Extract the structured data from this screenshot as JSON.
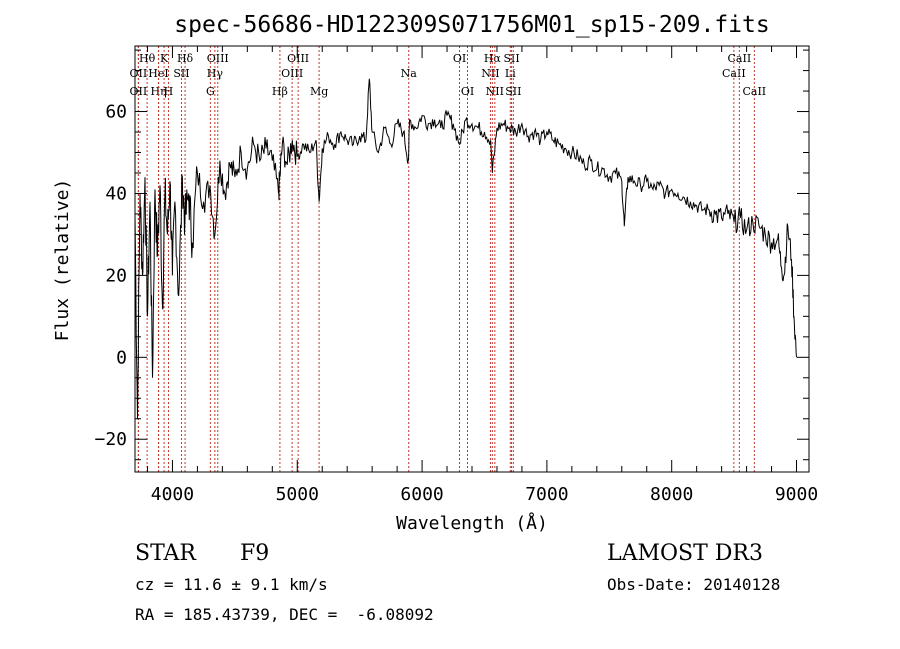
{
  "chart_data": {
    "type": "line",
    "title": "spec-56686-HD122309S071756M01_sp15-209.fits",
    "xlabel": "Wavelength (Å)",
    "ylabel": "Flux (relative)",
    "xlim": [
      3700,
      9100
    ],
    "ylim": [
      -28,
      76
    ],
    "x_ticks": [
      4000,
      5000,
      6000,
      7000,
      8000,
      9000
    ],
    "x_tick_labels": [
      "4000",
      "5000",
      "6000",
      "7000",
      "8000",
      "9000"
    ],
    "y_ticks": [
      -20,
      0,
      20,
      40,
      60
    ],
    "y_tick_labels": [
      "−20",
      "0",
      "20",
      "40",
      "60"
    ],
    "series": [
      {
        "name": "spectrum",
        "x": [
          3700,
          3720,
          3740,
          3760,
          3780,
          3800,
          3820,
          3840,
          3860,
          3880,
          3900,
          3920,
          3940,
          3960,
          3980,
          4000,
          4020,
          4050,
          4080,
          4100,
          4130,
          4160,
          4200,
          4250,
          4300,
          4340,
          4380,
          4420,
          4460,
          4500,
          4550,
          4600,
          4650,
          4700,
          4750,
          4800,
          4850,
          4861,
          4880,
          4920,
          4960,
          5000,
          5050,
          5100,
          5150,
          5175,
          5200,
          5250,
          5300,
          5350,
          5400,
          5450,
          5500,
          5550,
          5577,
          5600,
          5650,
          5700,
          5750,
          5800,
          5850,
          5890,
          5900,
          5950,
          6000,
          6050,
          6100,
          6150,
          6200,
          6250,
          6300,
          6350,
          6400,
          6450,
          6500,
          6550,
          6563,
          6600,
          6650,
          6700,
          6750,
          6800,
          6850,
          6900,
          6950,
          7000,
          7050,
          7100,
          7150,
          7200,
          7250,
          7300,
          7350,
          7400,
          7450,
          7500,
          7550,
          7600,
          7620,
          7650,
          7700,
          7750,
          7800,
          7850,
          7900,
          7950,
          8000,
          8050,
          8100,
          8150,
          8200,
          8250,
          8300,
          8350,
          8400,
          8450,
          8500,
          8550,
          8600,
          8650,
          8700,
          8750,
          8800,
          8850,
          8880,
          8900,
          8930,
          8960,
          8980,
          9000
        ],
        "y": [
          35,
          -15,
          40,
          20,
          44,
          10,
          38,
          -5,
          41,
          25,
          42,
          12,
          40,
          30,
          43,
          20,
          38,
          15,
          44,
          33,
          40,
          28,
          45,
          38,
          42,
          30,
          48,
          40,
          47,
          44,
          50,
          46,
          52,
          48,
          51,
          48,
          40,
          44,
          52,
          47,
          53,
          49,
          52,
          50,
          53,
          38,
          51,
          54,
          52,
          55,
          53,
          52,
          54,
          53,
          68,
          55,
          50,
          56,
          52,
          57,
          55,
          48,
          58,
          56,
          59,
          57,
          58,
          56,
          59,
          57,
          52,
          58,
          57,
          56,
          55,
          53,
          45,
          56,
          57,
          56,
          55,
          57,
          54,
          55,
          53,
          55,
          53,
          52,
          51,
          50,
          49,
          47,
          48,
          46,
          46,
          44,
          45,
          43,
          32,
          44,
          43,
          42,
          43,
          41,
          42,
          40,
          41,
          40,
          39,
          38,
          37,
          36,
          36,
          35,
          34,
          35,
          33,
          34,
          31,
          33,
          32,
          30,
          28,
          29,
          22,
          20,
          32,
          24,
          10,
          0
        ]
      }
    ],
    "line_markers": [
      {
        "x": 3797,
        "label": "Hθ",
        "row": 1
      },
      {
        "x": 3727,
        "label": "OII",
        "row": 2
      },
      {
        "x": 3727,
        "label": "OII",
        "row": 3
      },
      {
        "x": 3889,
        "label": "Hη",
        "row": 3
      },
      {
        "x": 3933,
        "label": "K",
        "row": 1
      },
      {
        "x": 3888,
        "label": "HeI",
        "row": 2
      },
      {
        "x": 3968,
        "label": "H",
        "row": 3
      },
      {
        "x": 4072,
        "label": "SII",
        "row": 2
      },
      {
        "x": 4101,
        "label": "Hδ",
        "row": 1
      },
      {
        "x": 4340,
        "label": "Hγ",
        "row": 2
      },
      {
        "x": 4304,
        "label": "G",
        "row": 3
      },
      {
        "x": 4363,
        "label": "OIII",
        "row": 1
      },
      {
        "x": 4861,
        "label": "Hβ",
        "row": 3
      },
      {
        "x": 4959,
        "label": "OIII",
        "row": 2
      },
      {
        "x": 5007,
        "label": "OIII",
        "row": 1
      },
      {
        "x": 5175,
        "label": "Mg",
        "row": 3
      },
      {
        "x": 5893,
        "label": "Na",
        "row": 2
      },
      {
        "x": 6300,
        "label": "OI",
        "row": 1
      },
      {
        "x": 6364,
        "label": "OI",
        "row": 3
      },
      {
        "x": 6548,
        "label": "NII",
        "row": 2
      },
      {
        "x": 6563,
        "label": "Hα",
        "row": 1
      },
      {
        "x": 6583,
        "label": "NII",
        "row": 3
      },
      {
        "x": 6707,
        "label": "Li",
        "row": 2
      },
      {
        "x": 6717,
        "label": "SII",
        "row": 1
      },
      {
        "x": 6731,
        "label": "SII",
        "row": 3
      },
      {
        "x": 8498,
        "label": "CaII",
        "row": 2
      },
      {
        "x": 8542,
        "label": "CaII",
        "row": 1
      },
      {
        "x": 8662,
        "label": "CaII",
        "row": 3
      }
    ]
  },
  "info": {
    "object_class": "STAR",
    "subclass": "F9",
    "survey": "LAMOST DR3",
    "redshift": "cz = 11.6 ± 9.1 km/s",
    "obs_date": "Obs-Date: 20140128",
    "coords": "RA = 185.43739, DEC =  -6.08092"
  }
}
